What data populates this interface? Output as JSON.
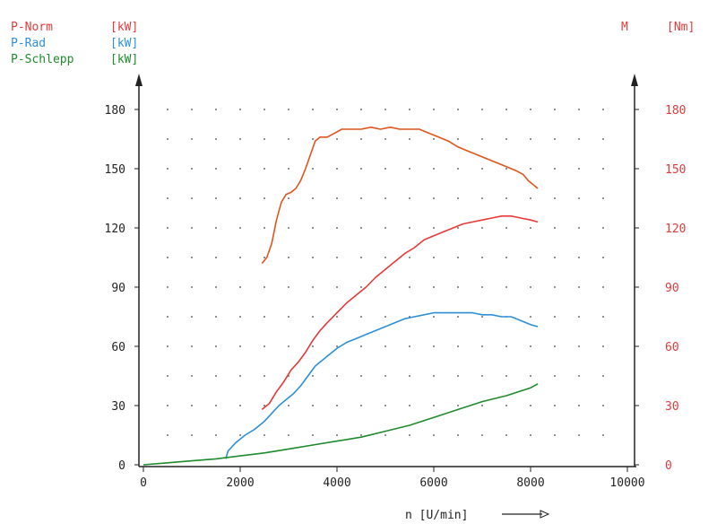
{
  "chart_data": {
    "type": "line",
    "legend": [
      {
        "label": "P-Norm",
        "unit": "[kW]",
        "color": "#e53a3a"
      },
      {
        "label": "P-Rad",
        "unit": "[kW]",
        "color": "#2e8fd8"
      },
      {
        "label": "P-Schlepp",
        "unit": "[kW]",
        "color": "#1f8a2e"
      }
    ],
    "right_axis": {
      "label": "M",
      "unit": "[Nm]",
      "color": "#e53a3a",
      "ticks": [
        "180",
        "150",
        "120",
        "90",
        "60",
        "30",
        "0"
      ],
      "ylim": [
        0,
        180
      ]
    },
    "left_axis": {
      "ticks": [
        "180",
        "150",
        "120",
        "90",
        "60",
        "30",
        "0"
      ],
      "ylim": [
        0,
        180
      ]
    },
    "x_axis": {
      "ticks": [
        "0",
        "2000",
        "4000",
        "6000",
        "8000",
        "10000"
      ],
      "xlim": [
        0,
        10000
      ],
      "label": "n [U/min]"
    },
    "grid": "dotted",
    "series": [
      {
        "name": "M",
        "color": "#e0541e",
        "points": [
          [
            2450,
            102
          ],
          [
            2550,
            105
          ],
          [
            2650,
            112
          ],
          [
            2750,
            124
          ],
          [
            2850,
            133
          ],
          [
            2950,
            137
          ],
          [
            3050,
            138
          ],
          [
            3150,
            140
          ],
          [
            3250,
            144
          ],
          [
            3350,
            150
          ],
          [
            3450,
            157
          ],
          [
            3550,
            164
          ],
          [
            3650,
            166
          ],
          [
            3800,
            166
          ],
          [
            3950,
            168
          ],
          [
            4100,
            170
          ],
          [
            4300,
            170
          ],
          [
            4500,
            170
          ],
          [
            4700,
            171
          ],
          [
            4900,
            170
          ],
          [
            5100,
            171
          ],
          [
            5300,
            170
          ],
          [
            5500,
            170
          ],
          [
            5700,
            170
          ],
          [
            5900,
            168
          ],
          [
            6100,
            166
          ],
          [
            6300,
            164
          ],
          [
            6500,
            161
          ],
          [
            6700,
            159
          ],
          [
            6900,
            157
          ],
          [
            7100,
            155
          ],
          [
            7300,
            153
          ],
          [
            7500,
            151
          ],
          [
            7700,
            149
          ],
          [
            7850,
            147
          ],
          [
            7950,
            144
          ],
          [
            8050,
            142
          ],
          [
            8150,
            140
          ]
        ]
      },
      {
        "name": "P-Norm",
        "color": "#e53a3a",
        "points": [
          [
            2450,
            28
          ],
          [
            2600,
            31
          ],
          [
            2750,
            37
          ],
          [
            2900,
            42
          ],
          [
            3050,
            48
          ],
          [
            3200,
            52
          ],
          [
            3350,
            57
          ],
          [
            3500,
            63
          ],
          [
            3650,
            68
          ],
          [
            3800,
            72
          ],
          [
            4000,
            77
          ],
          [
            4200,
            82
          ],
          [
            4400,
            86
          ],
          [
            4600,
            90
          ],
          [
            4800,
            95
          ],
          [
            5000,
            99
          ],
          [
            5200,
            103
          ],
          [
            5400,
            107
          ],
          [
            5600,
            110
          ],
          [
            5800,
            114
          ],
          [
            6000,
            116
          ],
          [
            6200,
            118
          ],
          [
            6400,
            120
          ],
          [
            6600,
            122
          ],
          [
            6800,
            123
          ],
          [
            7000,
            124
          ],
          [
            7200,
            125
          ],
          [
            7400,
            126
          ],
          [
            7600,
            126
          ],
          [
            7800,
            125
          ],
          [
            8000,
            124
          ],
          [
            8150,
            123
          ]
        ]
      },
      {
        "name": "P-Rad",
        "color": "#2e8fd8",
        "points": [
          [
            1700,
            3
          ],
          [
            1750,
            7
          ],
          [
            1900,
            11
          ],
          [
            2100,
            15
          ],
          [
            2300,
            18
          ],
          [
            2500,
            22
          ],
          [
            2650,
            26
          ],
          [
            2800,
            30
          ],
          [
            2950,
            33
          ],
          [
            3100,
            36
          ],
          [
            3250,
            40
          ],
          [
            3400,
            45
          ],
          [
            3550,
            50
          ],
          [
            3700,
            53
          ],
          [
            3850,
            56
          ],
          [
            4000,
            59
          ],
          [
            4200,
            62
          ],
          [
            4400,
            64
          ],
          [
            4600,
            66
          ],
          [
            4800,
            68
          ],
          [
            5000,
            70
          ],
          [
            5200,
            72
          ],
          [
            5400,
            74
          ],
          [
            5600,
            75
          ],
          [
            5800,
            76
          ],
          [
            6000,
            77
          ],
          [
            6200,
            77
          ],
          [
            6400,
            77
          ],
          [
            6600,
            77
          ],
          [
            6800,
            77
          ],
          [
            7000,
            76
          ],
          [
            7200,
            76
          ],
          [
            7400,
            75
          ],
          [
            7600,
            75
          ],
          [
            7800,
            73
          ],
          [
            8000,
            71
          ],
          [
            8150,
            70
          ]
        ]
      },
      {
        "name": "P-Schlepp",
        "color": "#1f8a2e",
        "points": [
          [
            0,
            0
          ],
          [
            500,
            1
          ],
          [
            1000,
            2
          ],
          [
            1500,
            3
          ],
          [
            2000,
            4.5
          ],
          [
            2500,
            6
          ],
          [
            3000,
            8
          ],
          [
            3500,
            10
          ],
          [
            4000,
            12
          ],
          [
            4500,
            14
          ],
          [
            5000,
            17
          ],
          [
            5500,
            20
          ],
          [
            6000,
            24
          ],
          [
            6500,
            28
          ],
          [
            7000,
            32
          ],
          [
            7500,
            35
          ],
          [
            8000,
            39
          ],
          [
            8150,
            41
          ]
        ]
      }
    ]
  }
}
